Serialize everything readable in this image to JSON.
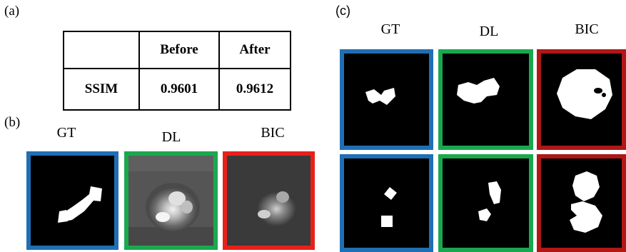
{
  "panel_labels": {
    "a": "(a)",
    "b": "(b)",
    "c": "(c)"
  },
  "table": {
    "headers": [
      "",
      "Before",
      "After"
    ],
    "rows": [
      {
        "label": "SSIM",
        "before": "0.9601",
        "after": "0.9612"
      }
    ]
  },
  "panel_b": {
    "columns": [
      "GT",
      "DL",
      "BIC"
    ]
  },
  "panel_c": {
    "columns": [
      "GT",
      "DL",
      "BIC"
    ]
  },
  "frame_colors": {
    "GT": "#1f6fb5",
    "DL": "#1aa84f",
    "BIC_b": "#e8201c",
    "BIC_c": "#b01717"
  }
}
